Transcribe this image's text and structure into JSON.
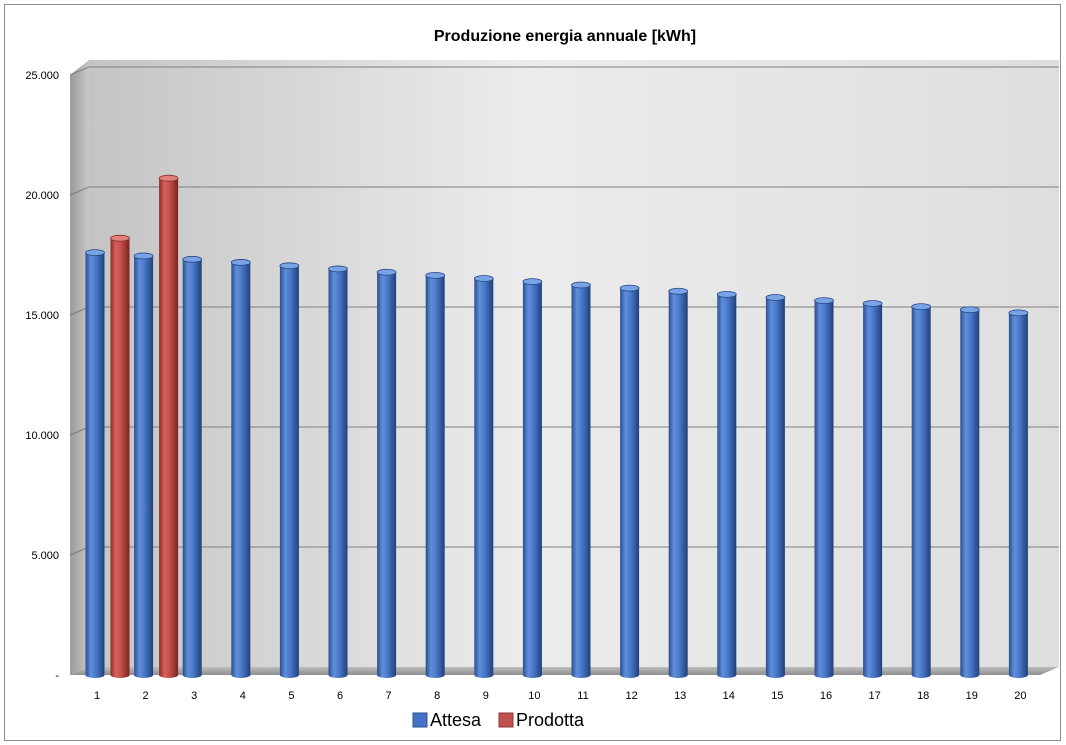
{
  "chart_data": {
    "type": "bar",
    "title": "Produzione energia annuale [kWh]",
    "xlabel": "",
    "ylabel": "",
    "categories": [
      "1",
      "2",
      "3",
      "4",
      "5",
      "6",
      "7",
      "8",
      "9",
      "10",
      "11",
      "12",
      "13",
      "14",
      "15",
      "16",
      "17",
      "18",
      "19",
      "20"
    ],
    "series": [
      {
        "name": "Attesa",
        "color": "#4472c4",
        "values": [
          17600,
          17460,
          17320,
          17190,
          17050,
          16920,
          16780,
          16650,
          16520,
          16390,
          16250,
          16120,
          15990,
          15860,
          15730,
          15600,
          15480,
          15350,
          15220,
          15090
        ]
      },
      {
        "name": "Prodotta",
        "color": "#c0504d",
        "values": [
          18200,
          20700,
          null,
          null,
          null,
          null,
          null,
          null,
          null,
          null,
          null,
          null,
          null,
          null,
          null,
          null,
          null,
          null,
          null,
          null
        ]
      }
    ],
    "ylim": [
      0,
      25000
    ],
    "yticks": [
      0,
      5000,
      10000,
      15000,
      20000,
      25000
    ],
    "ytick_labels": [
      "-",
      "5.000",
      "10.000",
      "15.000",
      "20.000",
      "25.000"
    ],
    "grid": true,
    "legend_position": "bottom"
  }
}
